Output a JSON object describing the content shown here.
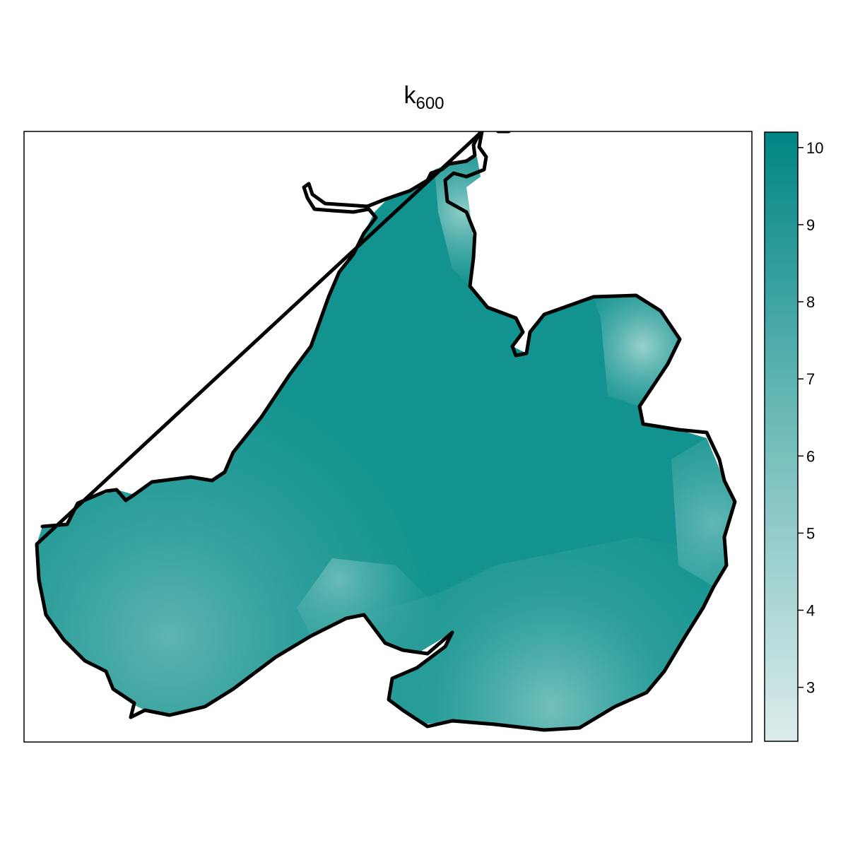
{
  "title": {
    "main": "k",
    "subscript": "600"
  },
  "colorbar": {
    "min": 2.3,
    "max": 10.2,
    "color_low": "#dcecec",
    "color_high": "#008585",
    "ticks": [
      {
        "value": 3,
        "label": "3"
      },
      {
        "value": 4,
        "label": "4"
      },
      {
        "value": 5,
        "label": "5"
      },
      {
        "value": 6,
        "label": "6"
      },
      {
        "value": 7,
        "label": "7"
      },
      {
        "value": 8,
        "label": "8"
      },
      {
        "value": 9,
        "label": "9"
      },
      {
        "value": 10,
        "label": "10"
      }
    ]
  },
  "map": {
    "outline_color": "#000000",
    "fill_high": "#008585",
    "fill_mid": "#3ea6a3",
    "fill_low": "#9fd3d0"
  }
}
